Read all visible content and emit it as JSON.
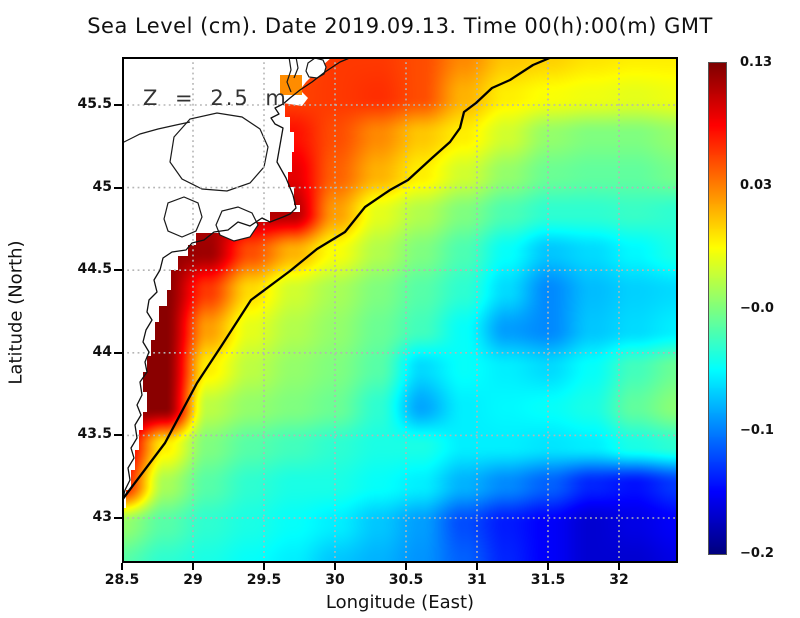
{
  "title": "Sea Level (cm). Date 2019.09.13. Time 00(h):00(m) GMT",
  "annotation": "Z = 2.5 m",
  "axes": {
    "x_label": "Longitude (East)",
    "y_label": "Latitude (North)",
    "x_ticks": {
      "labels": [
        "28.5",
        "29",
        "29.5",
        "30",
        "30.5",
        "31",
        "31.5",
        "32"
      ],
      "lons": [
        28.5,
        29,
        29.5,
        30,
        30.5,
        31,
        31.5,
        32
      ]
    },
    "y_ticks": {
      "labels": [
        "45.5",
        "45",
        "44.5",
        "44",
        "43.5",
        "43"
      ],
      "lats": [
        45.5,
        45,
        44.5,
        44,
        43.5,
        43
      ]
    }
  },
  "colorbar": {
    "colormap": "jet",
    "tick_labels": [
      "0.13",
      "0.03",
      "−0.0",
      "−0.1",
      "−0.2"
    ]
  },
  "chart_data": {
    "type": "heatmap",
    "title": "Sea Level (cm). Date 2019.09.13. Time 00(h):00(m) GMT",
    "xlabel": "Longitude (East)",
    "ylabel": "Latitude (North)",
    "lon_range": [
      28.5,
      32.42
    ],
    "lat_range": [
      42.73,
      45.79
    ],
    "colorbar_tick_values": [
      0.13,
      0.03,
      -0.0,
      -0.1,
      -0.2
    ],
    "grid_on": true,
    "values_normalized": [
      [
        0.8,
        0.8,
        0.8,
        0.8,
        0.8,
        0.82,
        0.82,
        0.8,
        0.74,
        0.68,
        0.67,
        0.65,
        0.64,
        0.64
      ],
      [
        0.84,
        0.84,
        0.84,
        0.84,
        0.81,
        0.82,
        0.83,
        0.8,
        0.7,
        0.64,
        0.62,
        0.61,
        0.6,
        0.61
      ],
      [
        0.86,
        0.86,
        0.86,
        0.86,
        0.86,
        0.8,
        0.74,
        0.68,
        0.64,
        0.58,
        0.52,
        0.5,
        0.5,
        0.52
      ],
      [
        0.9,
        0.9,
        0.9,
        0.9,
        0.9,
        0.78,
        0.7,
        0.64,
        0.58,
        0.52,
        0.48,
        0.47,
        0.47,
        0.49
      ],
      [
        0.95,
        0.95,
        0.95,
        0.95,
        0.95,
        0.72,
        0.6,
        0.55,
        0.5,
        0.45,
        0.42,
        0.42,
        0.43,
        0.42
      ],
      [
        0.98,
        0.98,
        0.97,
        0.8,
        0.7,
        0.62,
        0.55,
        0.5,
        0.45,
        0.38,
        0.32,
        0.34,
        0.37,
        0.4
      ],
      [
        0.99,
        0.99,
        0.82,
        0.66,
        0.58,
        0.54,
        0.5,
        0.46,
        0.42,
        0.34,
        0.26,
        0.31,
        0.33,
        0.34
      ],
      [
        0.99,
        0.99,
        0.72,
        0.6,
        0.55,
        0.52,
        0.48,
        0.44,
        0.38,
        0.28,
        0.26,
        0.32,
        0.34,
        0.36
      ],
      [
        0.99,
        0.99,
        0.64,
        0.56,
        0.52,
        0.5,
        0.46,
        0.34,
        0.38,
        0.36,
        0.34,
        0.38,
        0.44,
        0.48
      ],
      [
        0.99,
        0.99,
        0.56,
        0.52,
        0.5,
        0.48,
        0.42,
        0.29,
        0.36,
        0.37,
        0.38,
        0.4,
        0.47,
        0.51
      ],
      [
        0.92,
        0.64,
        0.5,
        0.46,
        0.44,
        0.42,
        0.4,
        0.4,
        0.36,
        0.36,
        0.35,
        0.36,
        0.4,
        0.42
      ],
      [
        0.85,
        0.54,
        0.46,
        0.42,
        0.4,
        0.4,
        0.38,
        0.36,
        0.3,
        0.26,
        0.22,
        0.16,
        0.14,
        0.18
      ],
      [
        0.52,
        0.46,
        0.42,
        0.4,
        0.38,
        0.36,
        0.32,
        0.28,
        0.2,
        0.15,
        0.12,
        0.08,
        0.1,
        0.12
      ],
      [
        0.46,
        0.42,
        0.4,
        0.38,
        0.36,
        0.32,
        0.3,
        0.27,
        0.22,
        0.16,
        0.12,
        0.08,
        0.08,
        0.1
      ]
    ],
    "geometry": {
      "zero_contour": "0,443 43,386 75,326 100,288 129,243 168,214 195,192 223,175 243,150 268,133 286,123 310,101 328,85 338,71 342,55 354,46 370,31 388,23 411,8 430,0",
      "land_mask": "0,0 168,0 168,46 163,46 163,60 168,60 168,75 172,75 172,95 170,95 170,115 166,115 166,130 172,130 172,148 178,148 178,155 148,155 148,165 108,165 108,176 74,176 74,188 66,188 66,199 56,199 56,213 49,213 49,233 45,233 45,249 37,249 37,265 33,265 33,283 29,283 29,299 25,299 25,315 21,315 21,335 25,335 25,355 21,355 21,373 17,373 17,393 13,393 13,413 9,413 9,433 4,433 4,451 0,451",
      "delta_notch": "161,0 210,0 200,9 192,17 184,25 178,33 186,41 180,49 161,46",
      "orange_cell": [
        158,
        18,
        22,
        20
      ],
      "island": "184,14 186,6 193,1 201,3 204,10 202,17 195,21 187,20",
      "coastline": "230,0 218,5 203,15 190,25 178,33 168,41 161,47 153,51 157,57 149,61 153,67 161,71 158,88 155,105 164,121 171,138 174,151 168,157 161,160 148,165 140,161 128,169 116,165 106,173 92,175 82,183 70,186 64,193 50,195 41,201 38,213 32,223 35,235 27,243 25,255 30,263 24,273 21,285 27,295 23,305 25,315 18,325 20,338 15,348 19,358 13,368 15,381 9,391 12,401 6,411 8,423 3,433 0,445",
      "peninsula_1": "167,0 169,13 165,25 169,35",
      "peninsula_2": "174,0 176,11 172,21",
      "river": "0,86 18,77 36,72 54,68 68,65",
      "lagoon": "48,105 52,80 68,62 95,56 120,60 138,72 146,90 142,110 128,126 105,134 80,132 60,122",
      "lake_a": "42,162 46,146 62,140 76,146 80,160 74,174 60,180 46,174",
      "lake_b": "94,168 100,154 116,150 130,156 136,168 128,180 112,184 98,178"
    }
  }
}
